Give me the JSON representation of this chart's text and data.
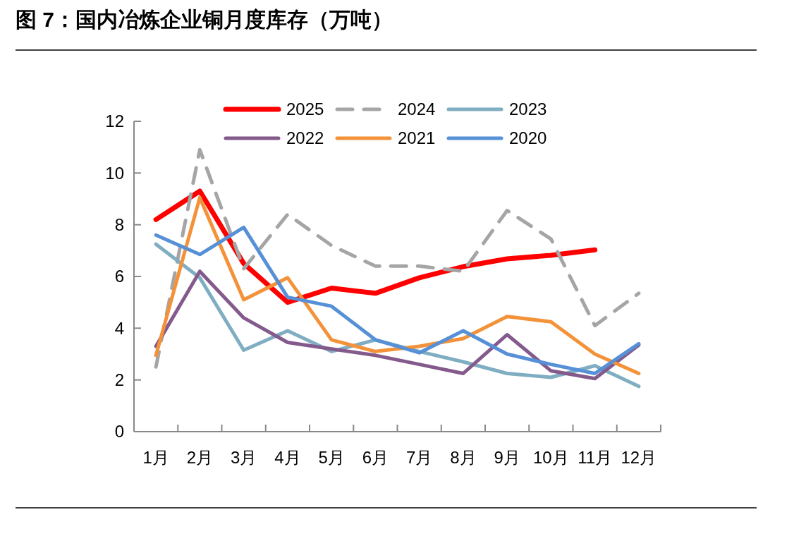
{
  "chart_data": {
    "type": "line",
    "title": "图 7：国内冶炼企业铜月度库存（万吨）",
    "categories": [
      "1月",
      "2月",
      "3月",
      "4月",
      "5月",
      "6月",
      "7月",
      "8月",
      "9月",
      "10月",
      "11月",
      "12月"
    ],
    "series": [
      {
        "name": "2025",
        "color": "#ff0000",
        "values": [
          8.2,
          9.3,
          6.5,
          5.0,
          5.55,
          5.35,
          5.95,
          6.38,
          6.68,
          6.82,
          7.03,
          null
        ]
      },
      {
        "name": "2024",
        "color": "#a5a5a5",
        "line_style": "dashed",
        "values": [
          2.5,
          10.9,
          6.3,
          8.4,
          7.2,
          6.4,
          6.4,
          6.2,
          8.55,
          7.45,
          4.1,
          5.35
        ]
      },
      {
        "name": "2023",
        "color": "#7fadc2",
        "values": [
          7.25,
          5.95,
          3.15,
          3.9,
          3.1,
          3.55,
          3.1,
          2.7,
          2.25,
          2.1,
          2.55,
          1.75
        ]
      },
      {
        "name": "2022",
        "color": "#845a8c",
        "values": [
          3.3,
          6.2,
          4.4,
          3.45,
          3.2,
          2.95,
          2.6,
          2.25,
          3.75,
          2.35,
          2.05,
          3.35
        ]
      },
      {
        "name": "2021",
        "color": "#f4923a",
        "values": [
          2.95,
          9.05,
          5.1,
          5.95,
          3.55,
          3.1,
          3.3,
          3.6,
          4.45,
          4.25,
          3.0,
          2.25
        ]
      },
      {
        "name": "2020",
        "color": "#5690d6",
        "values": [
          7.6,
          6.85,
          7.9,
          5.2,
          4.85,
          3.55,
          3.05,
          3.9,
          3.0,
          2.6,
          2.25,
          3.4
        ]
      }
    ],
    "ylim": [
      0,
      12
    ],
    "yticks": [
      0,
      2,
      4,
      6,
      8,
      10,
      12
    ],
    "grid": false,
    "legend": "top",
    "marker": "none",
    "line_style": "solid"
  }
}
